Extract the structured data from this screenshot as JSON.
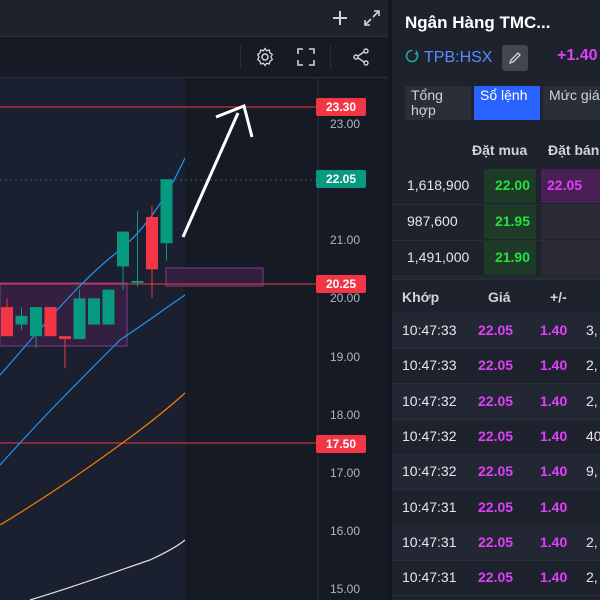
{
  "top_bar": {
    "plus_icon": "plus-icon",
    "expand_icon": "expand-icon"
  },
  "toolbar": {
    "settings_icon": "gear-icon",
    "fullscreen_icon": "fullscreen-icon",
    "share_icon": "share-icon"
  },
  "chart": {
    "price_tags": [
      {
        "value": "23.30",
        "color": "#f23645",
        "y": 23.3
      },
      {
        "value": "22.05",
        "color": "#089981",
        "y": 22.05
      },
      {
        "value": "20.25",
        "color": "#f23645",
        "y": 20.25
      },
      {
        "value": "17.50",
        "color": "#f23645",
        "y": 17.5
      }
    ],
    "axis_labels": [
      "23.00",
      "22.00",
      "21.00",
      "20.00",
      "19.00",
      "18.00",
      "17.00",
      "16.00",
      "15.00"
    ]
  },
  "chart_data": {
    "type": "candlestick",
    "candles": [
      {
        "open": 19.85,
        "high": 20.0,
        "low": 19.35,
        "close": 19.35
      },
      {
        "open": 19.55,
        "high": 19.85,
        "low": 19.45,
        "close": 19.7
      },
      {
        "open": 19.35,
        "high": 19.85,
        "low": 19.15,
        "close": 19.85
      },
      {
        "open": 19.85,
        "high": 19.85,
        "low": 19.35,
        "close": 19.35
      },
      {
        "open": 19.35,
        "high": 19.35,
        "low": 18.8,
        "close": 19.3
      },
      {
        "open": 19.3,
        "high": 20.15,
        "low": 19.3,
        "close": 20.0
      },
      {
        "open": 19.55,
        "high": 20.0,
        "low": 19.55,
        "close": 20.0
      },
      {
        "open": 19.55,
        "high": 20.15,
        "low": 19.55,
        "close": 20.15
      },
      {
        "open": 20.55,
        "high": 21.15,
        "low": 20.15,
        "close": 21.15
      },
      {
        "open": 20.3,
        "high": 21.5,
        "low": 20.2,
        "close": 20.3
      },
      {
        "open": 21.4,
        "high": 21.6,
        "low": 20.0,
        "close": 20.5
      },
      {
        "open": 20.95,
        "high": 22.05,
        "low": 20.65,
        "close": 22.05
      }
    ],
    "price_lines": [
      23.3,
      20.25,
      17.5
    ]
  },
  "stock": {
    "title": "Ngân Hàng TMC...",
    "ticker": "TPB:HSX",
    "change": "+1.40"
  },
  "tabs": [
    {
      "label": "Tổng hợp",
      "active": false
    },
    {
      "label": "Sổ lệnh",
      "active": true
    },
    {
      "label": "Mức giá",
      "active": false
    }
  ],
  "orderbook": {
    "buy_header": "Đặt mua",
    "sell_header": "Đặt bán",
    "rows": [
      {
        "volume": "1,618,900",
        "buy": "22.00",
        "sell": "22.05"
      },
      {
        "volume": "987,600",
        "buy": "21.95",
        "sell": ""
      },
      {
        "volume": "1,491,000",
        "buy": "21.90",
        "sell": ""
      }
    ]
  },
  "matches": {
    "header_time": "Khớp",
    "header_price": "Giá",
    "header_change": "+/-",
    "rows": [
      {
        "time": "10:47:33",
        "price": "22.05",
        "change": "1.40",
        "volume": "3,"
      },
      {
        "time": "10:47:33",
        "price": "22.05",
        "change": "1.40",
        "volume": "2,"
      },
      {
        "time": "10:47:32",
        "price": "22.05",
        "change": "1.40",
        "volume": "2,"
      },
      {
        "time": "10:47:32",
        "price": "22.05",
        "change": "1.40",
        "volume": "40,"
      },
      {
        "time": "10:47:32",
        "price": "22.05",
        "change": "1.40",
        "volume": "9,"
      },
      {
        "time": "10:47:31",
        "price": "22.05",
        "change": "1.40",
        "volume": ""
      },
      {
        "time": "10:47:31",
        "price": "22.05",
        "change": "1.40",
        "volume": "2,"
      },
      {
        "time": "10:47:31",
        "price": "22.05",
        "change": "1.40",
        "volume": "2,"
      }
    ]
  }
}
